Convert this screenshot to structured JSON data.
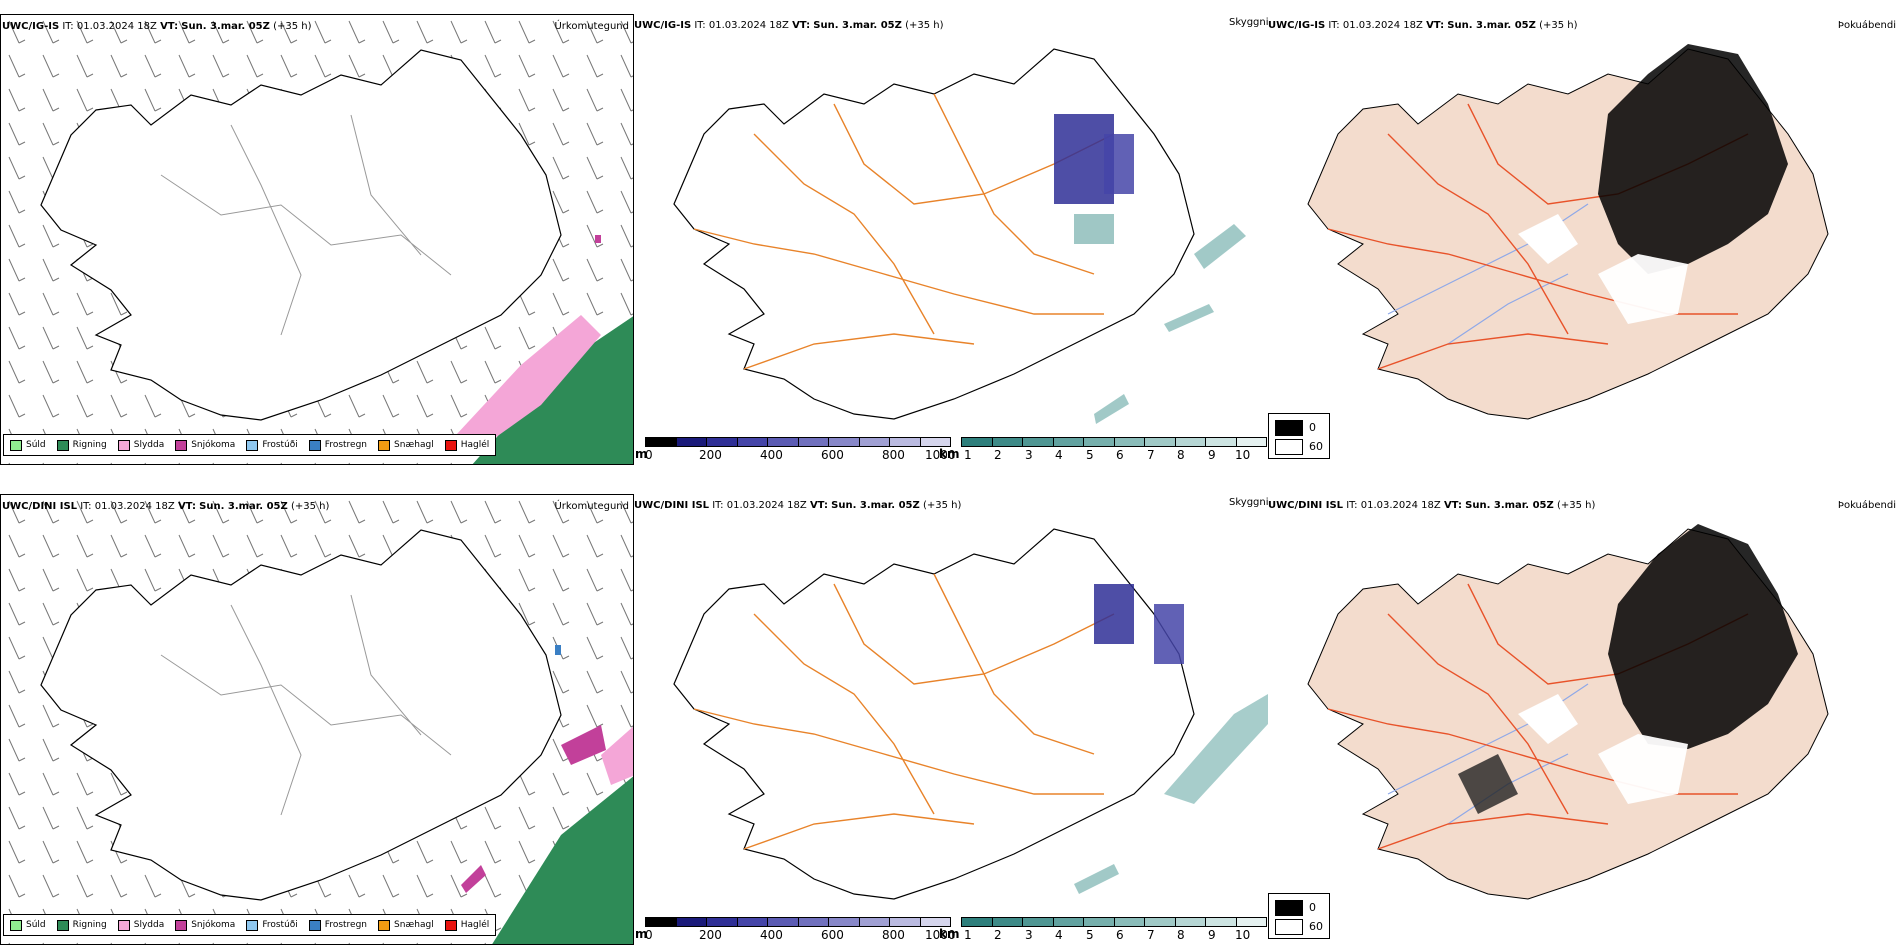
{
  "rows": [
    {
      "model": "UWC/IG-IS",
      "init_label": "IT:",
      "init_value": "01.03.2024 18Z",
      "valid_label": "VT:",
      "valid_value": "Sun. 3.mar. 05Z",
      "lead": "(+35 h)"
    },
    {
      "model": "UWC/DINI ISL",
      "init_label": "IT:",
      "init_value": "01.03.2024 18Z",
      "valid_label": "VT:",
      "valid_value": "Sun. 3.mar. 05Z",
      "lead": "(+35 h)"
    }
  ],
  "panel_titles": {
    "precip": "Úrkomutegund",
    "cloud": "Skyggni",
    "fog": "Þokuábendi"
  },
  "precip_legend": [
    {
      "label": "Súld",
      "color": "#90ee90"
    },
    {
      "label": "Rigning",
      "color": "#2e8b57"
    },
    {
      "label": "Slydda",
      "color": "#f4a6d7"
    },
    {
      "label": "Snjókoma",
      "color": "#c2409a"
    },
    {
      "label": "Frostúði",
      "color": "#8fc8f0"
    },
    {
      "label": "Frostregn",
      "color": "#3a7fc4"
    },
    {
      "label": "Snæhagl",
      "color": "#f39c12"
    },
    {
      "label": "Haglél",
      "color": "#e8130f"
    }
  ],
  "cloud_base": {
    "unit": "m",
    "ticks": [
      "0",
      "200",
      "400",
      "600",
      "800",
      "1000"
    ],
    "colors": [
      "#000000",
      "#1a1a7a",
      "#2f2f96",
      "#4545a8",
      "#5b5bb3",
      "#7070bd",
      "#8787c8",
      "#a0a0d3",
      "#babae0",
      "#d5d5ec"
    ]
  },
  "visibility": {
    "unit": "km",
    "ticks": [
      "1",
      "2",
      "3",
      "4",
      "5",
      "6",
      "7",
      "8",
      "9",
      "10"
    ],
    "colors": [
      "#2e7f7c",
      "#3d8a87",
      "#4f9693",
      "#62a2a0",
      "#76afac",
      "#8abcb9",
      "#a0c9c6",
      "#b6d6d4",
      "#cde4e2",
      "#e5f1f0"
    ]
  },
  "fog_key": [
    {
      "label": "0",
      "color": "#000000"
    },
    {
      "label": "60",
      "color": "#ffffff"
    }
  ],
  "colors": {
    "coast": "#000000",
    "roads": "#e8832a",
    "fog_land": "#f3dccd",
    "fog_roads": "#e8532a",
    "rivers": "#8ea8e8"
  }
}
